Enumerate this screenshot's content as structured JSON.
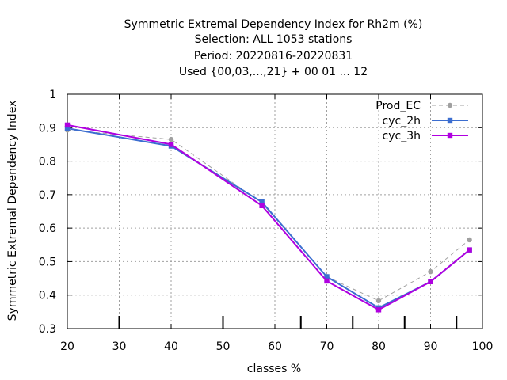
{
  "chart_data": {
    "type": "line",
    "title_lines": [
      "Symmetric Extremal Dependency Index  for Rh2m (%)",
      "Selection: ALL    1053 stations",
      "Period: 20220816-20220831",
      "Used {00,03,...,21} + 00 01 ... 12"
    ],
    "xlabel": "classes %",
    "ylabel": "Symmetric Extremal Dependency Index",
    "xlim": [
      20,
      100
    ],
    "ylim": [
      0.3,
      1
    ],
    "x_ticks": [
      20,
      30,
      40,
      50,
      60,
      70,
      80,
      90,
      100
    ],
    "y_ticks": [
      0.3,
      0.4,
      0.5,
      0.6,
      0.7,
      0.8,
      0.9,
      1
    ],
    "y_tick_labels": [
      "0.3",
      "0.4",
      "0.5",
      "0.6",
      "0.7",
      "0.8",
      "0.9",
      "1"
    ],
    "class_boundaries": [
      30,
      50,
      65,
      75,
      85,
      95
    ],
    "grid": true,
    "legend_position": "top-right",
    "series": [
      {
        "name": "Prod_EC",
        "color": "#a0a0a0",
        "dashed": true,
        "marker": "circle",
        "x": [
          20,
          40,
          57.5,
          70,
          80,
          90,
          97.5
        ],
        "y": [
          0.893,
          0.865,
          0.675,
          0.455,
          0.383,
          0.47,
          0.565
        ]
      },
      {
        "name": "cyc_2h",
        "color": "#3c6ed0",
        "dashed": false,
        "marker": "square",
        "x": [
          20,
          40,
          57.5,
          70,
          80,
          90,
          97.5
        ],
        "y": [
          0.898,
          0.845,
          0.678,
          0.455,
          0.362,
          0.44,
          0.535
        ]
      },
      {
        "name": "cyc_3h",
        "color": "#b000e0",
        "dashed": false,
        "marker": "square",
        "x": [
          20,
          40,
          57.5,
          70,
          80,
          90,
          97.5
        ],
        "y": [
          0.908,
          0.85,
          0.667,
          0.442,
          0.356,
          0.44,
          0.535
        ]
      }
    ]
  }
}
